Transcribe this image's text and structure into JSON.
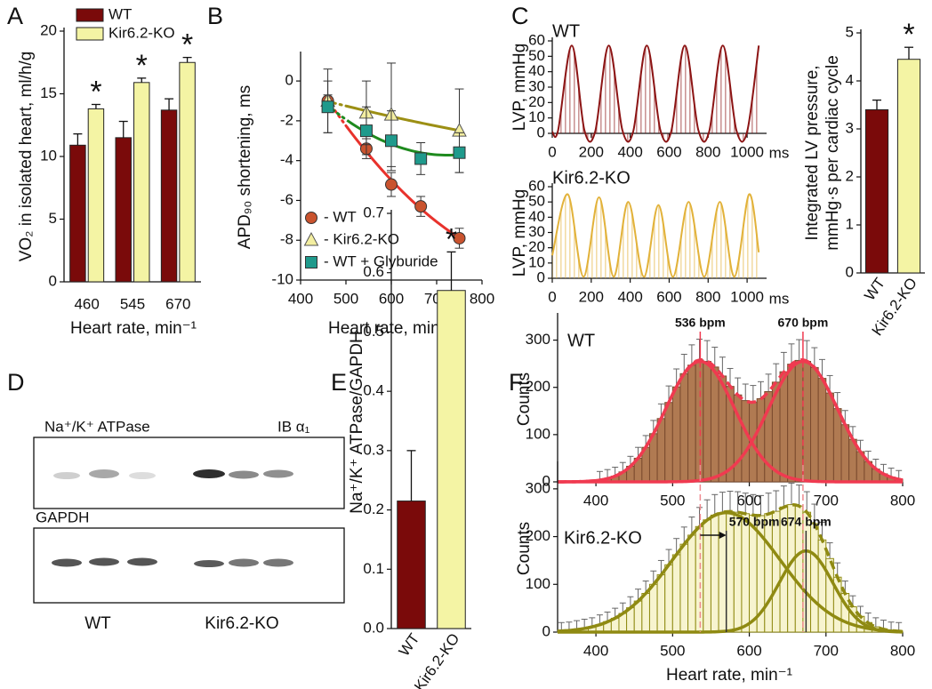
{
  "chart_data": [
    {
      "type": "bar",
      "panel": "A",
      "categories": [
        "460",
        "545",
        "670"
      ],
      "series": [
        {
          "name": "WT",
          "color": "#7a0a0a",
          "values": [
            10.9,
            11.5,
            13.7
          ],
          "errors": [
            0.9,
            1.3,
            0.9
          ]
        },
        {
          "name": "Kir6.2-KO",
          "color": "#f4f4a4",
          "values": [
            13.8,
            15.9,
            17.5
          ],
          "errors": [
            0.35,
            0.35,
            0.4
          ],
          "marked": [
            true,
            true,
            true
          ]
        }
      ],
      "marker": "*",
      "ylim": [
        0,
        20
      ],
      "yticks": [
        0,
        5,
        10,
        15,
        20
      ],
      "y_label": "VO₂ in isolated heart, ml/h/g",
      "x_label": "Heart rate, min⁻¹",
      "legend": "upper left"
    },
    {
      "type": "scatter",
      "panel": "B",
      "x": [
        460,
        545,
        600,
        665,
        750
      ],
      "series": [
        {
          "name": "- WT",
          "marker": "circle",
          "color": "#c9532e",
          "fit_color": "#e8322c",
          "values": [
            -1.0,
            -3.4,
            -5.2,
            -6.3,
            -7.9
          ],
          "errors": [
            0.3,
            0.5,
            0.6,
            0.5,
            0.5
          ]
        },
        {
          "name": "- Kir6.2-KO",
          "marker": "triangle",
          "color": "#f3eea0",
          "fit_color": "#9c8f14",
          "values": [
            -1.0,
            -1.6,
            -1.7,
            null,
            -2.5
          ],
          "errors": [
            1.6,
            1.6,
            2.6,
            null,
            2.1
          ]
        },
        {
          "name": "- WT + Glyburide",
          "marker": "square",
          "color": "#1f9a8c",
          "fit_color": "#1e8a1e",
          "values": [
            -1.3,
            -2.5,
            -3.0,
            -3.9,
            -3.6
          ],
          "errors": [
            1.3,
            1.2,
            1.5,
            0.8,
            1.0
          ]
        }
      ],
      "fit": "quadratic",
      "xlim": [
        400,
        800
      ],
      "xticks": [
        400,
        500,
        600,
        700,
        800
      ],
      "ylim": [
        -10,
        1.3
      ],
      "yticks": [
        0,
        -2,
        -4,
        -6,
        -8,
        -10
      ],
      "y_label": "APD₉₀ shortening, ms",
      "x_label": "Heart rate, min⁻¹",
      "legend": "lower left"
    },
    {
      "type": "line",
      "panel": "C",
      "label": "WT",
      "x": [
        0,
        30,
        100,
        165,
        220,
        290,
        360,
        415,
        485,
        555,
        610,
        680,
        750,
        805,
        875,
        945,
        1000,
        1060
      ],
      "series": [
        {
          "color": "#8c1414",
          "values": [
            1,
            2,
            57,
            2,
            1,
            57,
            2,
            1,
            57,
            2,
            1,
            57,
            2,
            1,
            57,
            2,
            1,
            57
          ]
        }
      ],
      "xlim": [
        0,
        1100
      ],
      "xticks": [
        0,
        200,
        400,
        600,
        800,
        1000
      ],
      "x_unit": "ms",
      "ylim": [
        0,
        60
      ],
      "yticks": [
        0,
        10,
        20,
        30,
        40,
        50,
        60
      ],
      "y_label": "LVP, mmHg"
    },
    {
      "type": "line",
      "label": "Kir6.2-KO",
      "x": [
        0,
        80,
        160,
        240,
        315,
        390,
        470,
        545,
        620,
        700,
        780,
        860,
        935,
        1010,
        1060
      ],
      "series": [
        {
          "color": "#e2b23a",
          "values": [
            15,
            55,
            1,
            53,
            1,
            50,
            1,
            48,
            1,
            50,
            1,
            50,
            1,
            55,
            17
          ]
        }
      ],
      "xlim": [
        0,
        1100
      ],
      "xticks": [
        0,
        200,
        400,
        600,
        800,
        1000
      ],
      "x_unit": "ms",
      "ylim": [
        0,
        60
      ],
      "yticks": [
        0,
        10,
        20,
        30,
        40,
        50,
        60
      ],
      "y_label": "LVP, mmHg"
    },
    {
      "type": "bar",
      "categories": [
        "WT",
        "Kir6.2-KO"
      ],
      "values": [
        3.4,
        4.45
      ],
      "errors": [
        0.2,
        0.25
      ],
      "colors": [
        "#7a0a0a",
        "#f4f4a4"
      ],
      "marked": [
        false,
        true
      ],
      "marker": "*",
      "ylim": [
        0,
        5
      ],
      "yticks": [
        0,
        1,
        2,
        3,
        4,
        5
      ],
      "y_label": [
        "Integrated LV pressure,",
        "mmHg·s per cardiac cycle"
      ]
    },
    {
      "type": "bar",
      "panel": "E",
      "categories": [
        "WT",
        "Kir6.2-KO"
      ],
      "values": [
        0.215,
        0.57
      ],
      "errors": [
        0.085,
        0.065
      ],
      "colors": [
        "#7a0a0a",
        "#f4f4a4"
      ],
      "marked": [
        false,
        true
      ],
      "marker": "*",
      "ylim": [
        0,
        0.7
      ],
      "yticks": [
        {
          "value": 0,
          "label": "0.0"
        },
        0.1,
        0.2,
        0.3,
        0.4,
        0.5,
        0.6,
        0.7
      ],
      "y_label": "Na⁺/K⁺ ATPase/GAPDH"
    },
    {
      "type": "histogram",
      "panel": "F",
      "label": "WT",
      "bins": [
        400,
        410,
        420,
        430,
        440,
        450,
        460,
        470,
        480,
        490,
        500,
        510,
        520,
        530,
        540,
        550,
        560,
        570,
        580,
        590,
        600,
        610,
        620,
        630,
        640,
        650,
        660,
        670,
        680,
        690,
        700,
        710,
        720,
        730,
        740,
        750,
        760,
        770,
        780,
        790,
        800
      ],
      "counts": [
        4,
        7,
        12,
        21,
        33,
        50,
        73,
        102,
        134,
        168,
        201,
        229,
        247,
        258,
        255,
        243,
        224,
        202,
        184,
        172,
        169,
        176,
        191,
        211,
        233,
        249,
        257,
        255,
        242,
        219,
        188,
        155,
        121,
        90,
        64,
        43,
        27,
        17,
        10,
        5
      ],
      "errors": [
        18,
        19,
        19,
        20,
        21,
        23,
        25,
        28,
        31,
        35,
        38,
        41,
        43,
        44,
        44,
        42,
        40,
        38,
        36,
        35,
        35,
        36,
        37,
        39,
        41,
        43,
        44,
        44,
        42,
        40,
        37,
        34,
        30,
        27,
        24,
        22,
        21,
        20,
        19,
        19
      ],
      "color": "#b07a52",
      "edge_color": "#7a4a2e",
      "fit_color": "#f03a50",
      "fits": [
        {
          "peak": {
            "value": 536,
            "label": "536 bpm"
          },
          "sd": 45,
          "amp": 255
        },
        {
          "peak": {
            "value": 670,
            "label": "670 bpm"
          },
          "sd": 45,
          "amp": 255
        }
      ],
      "xlim": [
        350,
        800
      ],
      "xticks": [
        400,
        500,
        600,
        700,
        800
      ],
      "ylim": [
        0,
        350
      ],
      "yticks": [
        0,
        100,
        200,
        300
      ],
      "y_label": "Counts"
    },
    {
      "type": "histogram",
      "label": "Kir6.2-KO",
      "bins": [
        350,
        360,
        370,
        380,
        390,
        400,
        410,
        420,
        430,
        440,
        450,
        460,
        470,
        480,
        490,
        500,
        510,
        520,
        530,
        540,
        550,
        560,
        570,
        580,
        590,
        600,
        610,
        620,
        630,
        640,
        650,
        660,
        670,
        680,
        690,
        700,
        710,
        720,
        730,
        740,
        750,
        760,
        770,
        780,
        790,
        800
      ],
      "counts": [
        2,
        3,
        5,
        8,
        11,
        16,
        22,
        29,
        39,
        51,
        65,
        81,
        100,
        120,
        141,
        162,
        184,
        203,
        221,
        235,
        245,
        250,
        252,
        251,
        248,
        245,
        244,
        248,
        253,
        262,
        267,
        264,
        251,
        227,
        193,
        154,
        115,
        81,
        53,
        33,
        20,
        11,
        6,
        3,
        2
      ],
      "errors": [
        18,
        18,
        19,
        19,
        19,
        20,
        20,
        21,
        22,
        23,
        25,
        26,
        28,
        30,
        32,
        34,
        36,
        38,
        40,
        42,
        43,
        43,
        43,
        43,
        43,
        43,
        42,
        43,
        43,
        44,
        45,
        44,
        43,
        41,
        37,
        33,
        30,
        26,
        23,
        21,
        20,
        19,
        19,
        18,
        18
      ],
      "color": "#f7f4cf",
      "edge_color": "#8f8a12",
      "fit_color": "#8f8a12",
      "fits": [
        {
          "peak": {
            "value": 570,
            "label": "570 bpm"
          },
          "sd": 70,
          "amp": 250
        },
        {
          "peak": {
            "value": 674,
            "label": "674 bpm"
          },
          "sd": 35,
          "amp": 170
        }
      ],
      "xlim": [
        350,
        800
      ],
      "xticks": [
        400,
        500,
        600,
        700,
        800
      ],
      "ylim": [
        0,
        350
      ],
      "yticks": [
        0,
        100,
        200,
        300
      ],
      "y_label": "Counts",
      "x_label": "Heart rate, min⁻¹"
    }
  ],
  "blot": {
    "panel": "D",
    "target": "Na⁺/K⁺ ATPase",
    "antibody": "IB α₁",
    "loading_control": "GAPDH",
    "groups": [
      "WT",
      "Kir6.2-KO"
    ]
  }
}
